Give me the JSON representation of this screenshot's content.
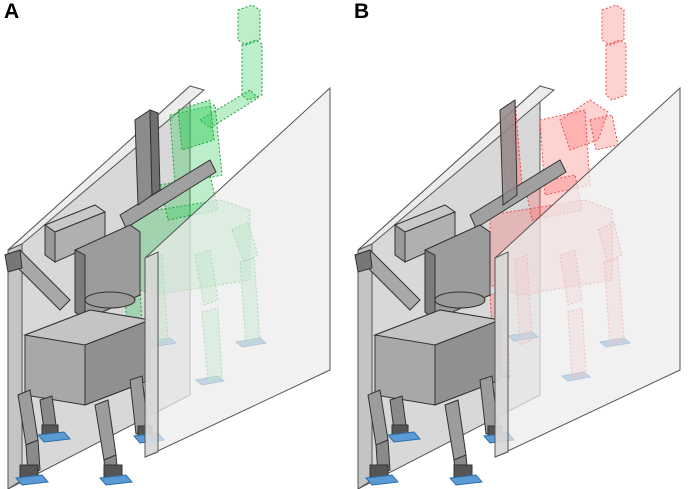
{
  "panels": [
    {
      "id": "A",
      "label": "A",
      "ghost_color": "#2ecc57",
      "ghost_stroke": "#1f9a3f"
    },
    {
      "id": "B",
      "label": "B",
      "ghost_color": "#ff6b6b",
      "ghost_stroke": "#e84b4b"
    }
  ],
  "colors": {
    "robot_fill": "#a8a8a8",
    "robot_dark": "#8c8c8c",
    "robot_light": "#c8c8c8",
    "robot_stroke": "#333333",
    "wall_fill": "#e4e4e4",
    "wall_stroke": "#555555",
    "foot_pad": "#5b9bd5"
  },
  "icons": [
    "robot-figure",
    "wall-panel",
    "foot-pad"
  ]
}
